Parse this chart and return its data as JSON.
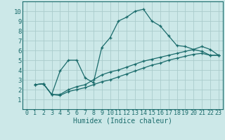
{
  "xlabel": "Humidex (Indice chaleur)",
  "background_color": "#cce8e8",
  "grid_color": "#aacccc",
  "line_color": "#1a6b6b",
  "spine_color": "#1a6b6b",
  "xlim": [
    -0.5,
    23.5
  ],
  "ylim": [
    0,
    11
  ],
  "xticks": [
    0,
    1,
    2,
    3,
    4,
    5,
    6,
    7,
    8,
    9,
    10,
    11,
    12,
    13,
    14,
    15,
    16,
    17,
    18,
    19,
    20,
    21,
    22,
    23
  ],
  "yticks": [
    1,
    2,
    3,
    4,
    5,
    6,
    7,
    8,
    9,
    10
  ],
  "series": [
    {
      "x": [
        1,
        2,
        3,
        4,
        5,
        6,
        7,
        8,
        9,
        10,
        11,
        12,
        13,
        14,
        15,
        16,
        17,
        18,
        19,
        20,
        21,
        22,
        23
      ],
      "y": [
        2.5,
        2.6,
        1.5,
        3.9,
        5.0,
        5.0,
        3.2,
        2.7,
        6.3,
        7.3,
        9.0,
        9.4,
        10.0,
        10.2,
        9.0,
        8.5,
        7.5,
        6.5,
        6.4,
        6.1,
        5.9,
        5.5,
        5.5
      ]
    },
    {
      "x": [
        1,
        2,
        3,
        4,
        5,
        6,
        7,
        8,
        9,
        10,
        11,
        12,
        13,
        14,
        15,
        16,
        17,
        18,
        19,
        20,
        21,
        22,
        23
      ],
      "y": [
        2.5,
        2.6,
        1.5,
        1.5,
        2.0,
        2.3,
        2.5,
        3.0,
        3.5,
        3.8,
        4.0,
        4.3,
        4.6,
        4.9,
        5.1,
        5.3,
        5.5,
        5.7,
        5.9,
        6.1,
        6.4,
        6.1,
        5.5
      ]
    },
    {
      "x": [
        1,
        2,
        3,
        4,
        5,
        6,
        7,
        8,
        9,
        10,
        11,
        12,
        13,
        14,
        15,
        16,
        17,
        18,
        19,
        20,
        21,
        22,
        23
      ],
      "y": [
        2.5,
        2.6,
        1.5,
        1.4,
        1.8,
        2.0,
        2.2,
        2.5,
        2.8,
        3.0,
        3.3,
        3.6,
        3.9,
        4.2,
        4.5,
        4.7,
        5.0,
        5.2,
        5.4,
        5.6,
        5.7,
        5.5,
        5.5
      ]
    }
  ],
  "figsize": [
    3.2,
    2.0
  ],
  "dpi": 100,
  "xlabel_fontsize": 7,
  "tick_fontsize": 6
}
